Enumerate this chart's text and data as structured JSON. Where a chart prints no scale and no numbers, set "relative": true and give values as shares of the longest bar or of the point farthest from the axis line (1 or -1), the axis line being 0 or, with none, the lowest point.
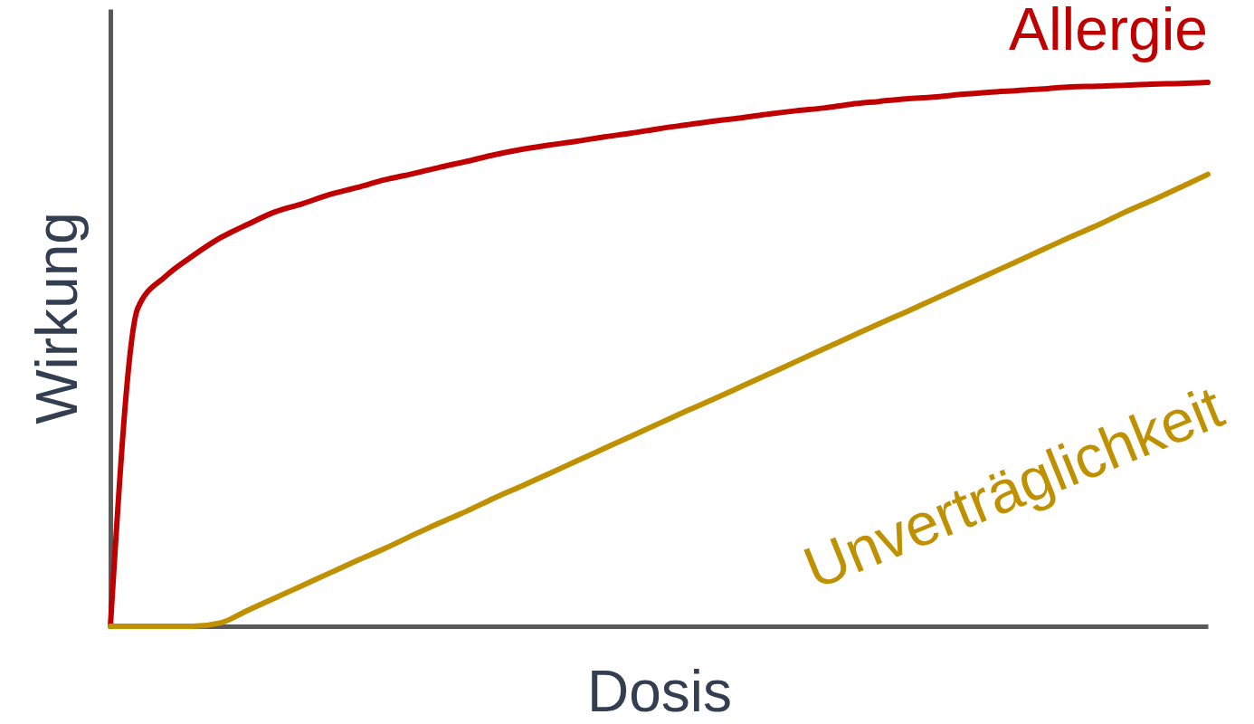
{
  "chart_data": {
    "type": "line",
    "relative": true,
    "xlabel": "Dosis",
    "ylabel": "Wirkung",
    "categories": [
      null,
      null,
      null,
      null,
      null,
      null,
      null,
      null,
      null,
      null,
      null,
      null,
      null,
      null,
      null,
      null,
      null,
      null,
      null,
      null,
      null,
      null,
      null,
      null,
      null,
      null,
      null,
      null,
      null,
      null,
      null,
      null,
      null,
      null,
      null,
      null,
      null,
      null,
      null,
      null,
      null
    ],
    "series": [
      {
        "name": "Allergie",
        "color": "#c00000",
        "values": [
          0,
          0.585,
          0.643,
          0.681,
          0.714,
          0.739,
          0.762,
          0.777,
          0.794,
          0.807,
          0.821,
          0.832,
          0.844,
          0.855,
          0.867,
          0.877,
          0.885,
          0.892,
          0.9,
          0.907,
          0.915,
          0.922,
          0.929,
          0.935,
          0.942,
          0.948,
          0.953,
          0.96,
          0.965,
          0.97,
          0.973,
          0.978,
          0.982,
          0.985,
          0.988,
          0.992,
          0.993,
          0.995,
          0.997,
          0.998,
          1
        ]
      },
      {
        "name": "Unverträglichkeit",
        "color": "#bf9000",
        "values": [
          0,
          0,
          0,
          0,
          0.006,
          0.029,
          0.052,
          0.075,
          0.098,
          0.121,
          0.143,
          0.167,
          0.19,
          0.212,
          0.236,
          0.258,
          0.281,
          0.304,
          0.327,
          0.35,
          0.373,
          0.396,
          0.418,
          0.441,
          0.464,
          0.487,
          0.51,
          0.533,
          0.556,
          0.578,
          0.601,
          0.624,
          0.647,
          0.67,
          0.693,
          0.716,
          0.738,
          0.762,
          0.784,
          0.807,
          0.831
        ]
      }
    ],
    "grid": false,
    "marker": "none",
    "line_style": "solid"
  }
}
